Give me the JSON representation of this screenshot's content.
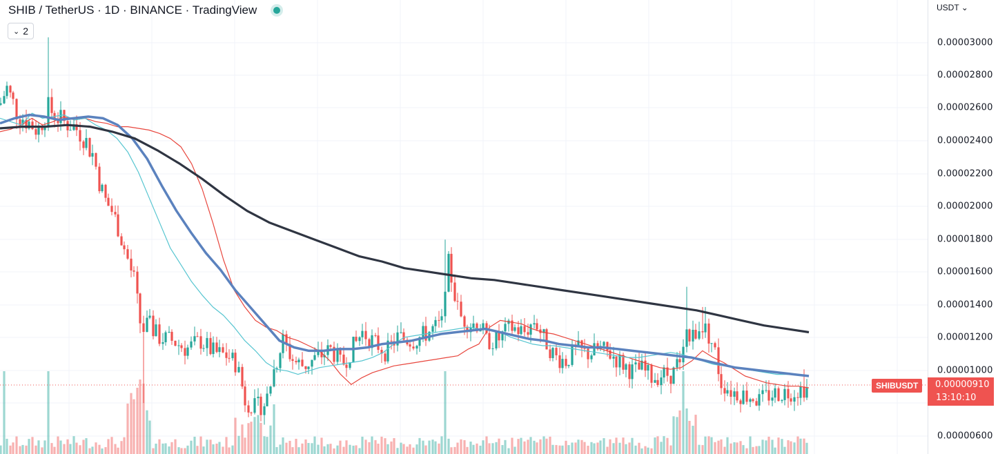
{
  "header": {
    "title": "SHIB / TetherUS · 1D · BINANCE · TradingView",
    "indicator_count": "2"
  },
  "price_axis": {
    "currency": "USDT",
    "ticks": [
      "0.00003000",
      "0.00002800",
      "0.00002600",
      "0.00002400",
      "0.00002200",
      "0.00002000",
      "0.00001800",
      "0.00001600",
      "0.00001400",
      "0.00001200",
      "0.00001000",
      "0.00000600"
    ]
  },
  "price_marker": {
    "symbol": "SHIBUSDT",
    "price": "0.00000910",
    "countdown": "13:10:10",
    "color": "#ef5350"
  },
  "colors": {
    "up": "#26a69a",
    "down": "#ef5350",
    "ema_fast": "#e8453c",
    "ema_mid": "#56c5d0",
    "ma_blue": "#5b82be",
    "ma_long": "#2f3542"
  },
  "chart_data": {
    "type": "candlestick",
    "ylim": [
      5.6e-06,
      3.14e-05
    ],
    "series": [
      {
        "values": [
          2.44,
          2.455,
          2.48,
          2.52,
          2.48,
          2.5,
          2.53,
          2.51,
          2.52,
          2.5,
          2.49,
          2.47,
          2.47,
          2.46,
          2.45,
          2.43,
          2.4,
          2.35,
          2.25,
          2.1,
          1.9,
          1.68,
          1.5,
          1.4,
          1.32,
          1.28,
          1.26,
          1.22,
          1.2,
          1.17,
          1.14,
          1.08,
          1.0,
          0.94,
          0.98,
          1.01,
          1.03,
          1.05,
          1.06,
          1.07,
          1.08,
          1.09,
          1.1,
          1.11,
          1.15,
          1.18,
          1.28,
          1.32,
          1.31,
          1.3,
          1.27,
          1.25,
          1.24,
          1.22,
          1.2,
          1.18,
          1.16,
          1.14,
          1.12,
          1.1,
          1.08,
          1.06,
          1.04,
          1.03,
          1.04,
          1.08,
          1.14,
          1.1,
          1.07,
          1.03,
          0.99,
          0.97,
          0.95,
          0.94,
          0.93,
          0.93,
          0.92
        ]
      },
      {
        "values": [
          2.52,
          2.5,
          2.48,
          2.55,
          2.52,
          2.53,
          2.54,
          2.51,
          2.52,
          2.48,
          2.45,
          2.4,
          2.32,
          2.2,
          2.05,
          1.9,
          1.75,
          1.65,
          1.55,
          1.47,
          1.4,
          1.35,
          1.28,
          1.2,
          1.14,
          1.07,
          1.03,
          1.02,
          1.0,
          1.02,
          1.04,
          1.05,
          1.06,
          1.07,
          1.08,
          1.1,
          1.13,
          1.18,
          1.22,
          1.23,
          1.24,
          1.25,
          1.26,
          1.27,
          1.28,
          1.27,
          1.26,
          1.25,
          1.22,
          1.2,
          1.18,
          1.17,
          1.17,
          1.16,
          1.15,
          1.14,
          1.13,
          1.12,
          1.11,
          1.1,
          1.1,
          1.11,
          1.12,
          1.13,
          1.12,
          1.1,
          1.08,
          1.06,
          1.05,
          1.04,
          1.03,
          1.02,
          1.01,
          1.0,
          1.0,
          1.0,
          0.99
        ]
      },
      {
        "values": [
          2.49,
          2.52,
          2.54,
          2.53,
          2.51,
          2.52,
          2.53,
          2.52,
          2.48,
          2.4,
          2.28,
          2.12,
          1.97,
          1.84,
          1.72,
          1.62,
          1.5,
          1.4,
          1.3,
          1.2,
          1.16,
          1.14,
          1.14,
          1.15,
          1.15,
          1.16,
          1.18,
          1.19,
          1.2,
          1.22,
          1.24,
          1.25,
          1.26,
          1.27,
          1.25,
          1.23,
          1.21,
          1.2,
          1.18,
          1.17,
          1.16,
          1.16,
          1.15,
          1.14,
          1.13,
          1.12,
          1.11,
          1.1,
          1.08,
          1.06,
          1.04,
          1.03,
          1.02,
          1.01,
          1.0,
          0.99
        ]
      },
      {
        "values": [
          2.46,
          2.47,
          2.47,
          2.48,
          2.47,
          2.44,
          2.4,
          2.33,
          2.25,
          2.16,
          2.06,
          1.97,
          1.9,
          1.85,
          1.8,
          1.75,
          1.7,
          1.67,
          1.63,
          1.61,
          1.59,
          1.57,
          1.56,
          1.54,
          1.52,
          1.5,
          1.48,
          1.46,
          1.44,
          1.42,
          1.4,
          1.38,
          1.35,
          1.32,
          1.29,
          1.27,
          1.25
        ]
      }
    ]
  }
}
